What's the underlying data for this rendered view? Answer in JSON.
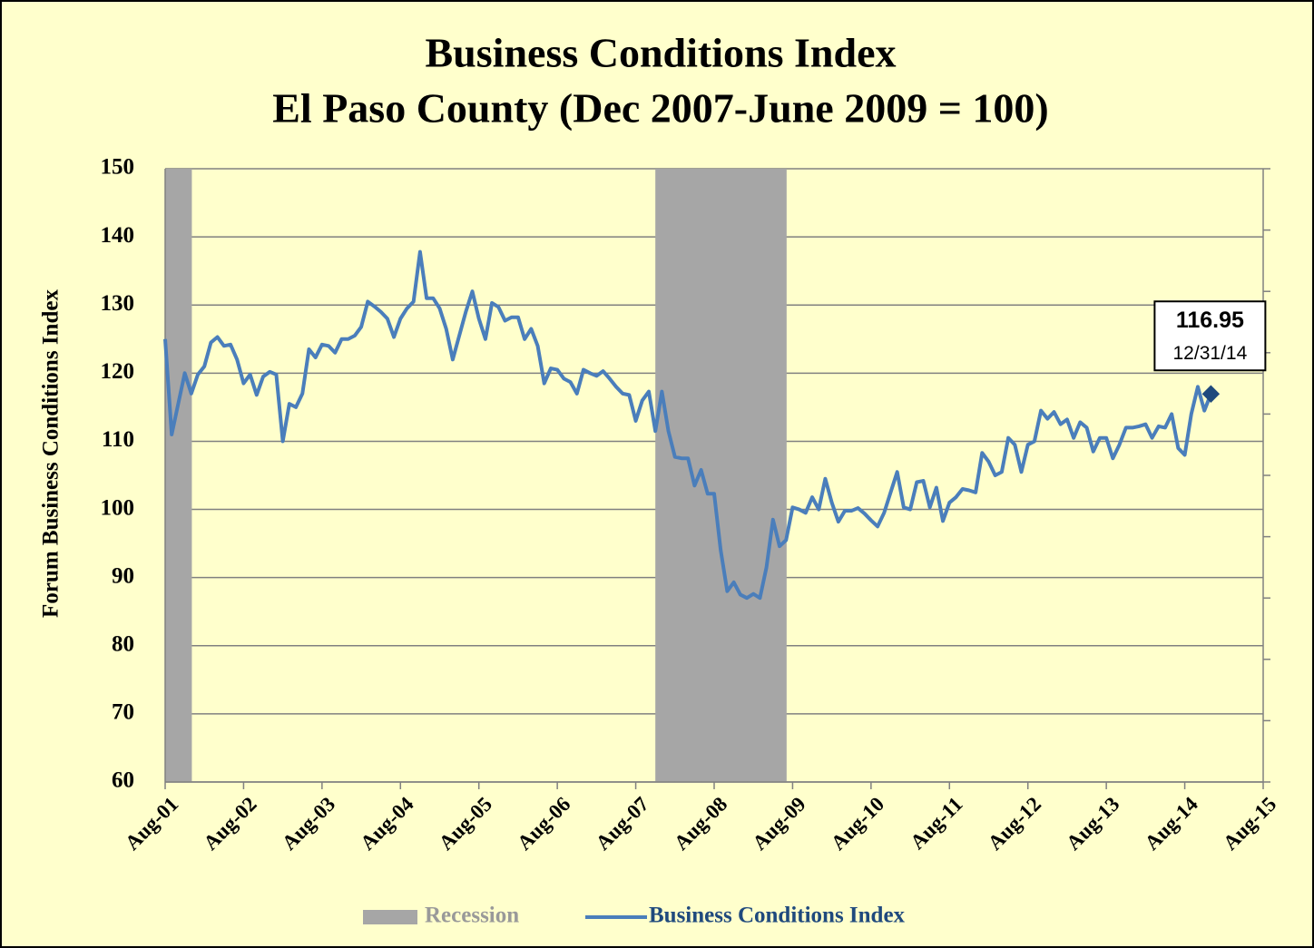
{
  "chart_data": {
    "type": "line",
    "title": "Business Conditions Index",
    "subtitle": "El Paso County (Dec 2007-June 2009 = 100)",
    "y_label": "Forum Business Conditions Index",
    "ylim": [
      60,
      150
    ],
    "yticks": [
      60,
      70,
      80,
      90,
      100,
      110,
      120,
      130,
      140,
      150
    ],
    "y2lim": [
      0,
      1
    ],
    "y2ticks": [
      0,
      0.1,
      0.2,
      0.3,
      0.4,
      0.5,
      0.6,
      0.7,
      0.8,
      0.9,
      1
    ],
    "grid": true,
    "legend": "bottom",
    "annotation_date": "12/31/14",
    "categories": [
      "Aug-01",
      null,
      null,
      null,
      null,
      null,
      null,
      null,
      null,
      null,
      null,
      null,
      "Aug-02",
      null,
      null,
      null,
      null,
      null,
      null,
      null,
      null,
      null,
      null,
      null,
      "Aug-03",
      null,
      null,
      null,
      null,
      null,
      null,
      null,
      null,
      null,
      null,
      null,
      "Aug-04",
      null,
      null,
      null,
      null,
      null,
      null,
      null,
      null,
      null,
      null,
      null,
      "Aug-05",
      null,
      null,
      null,
      null,
      null,
      null,
      null,
      null,
      null,
      null,
      null,
      "Aug-06",
      null,
      null,
      null,
      null,
      null,
      null,
      null,
      null,
      null,
      null,
      null,
      "Aug-07",
      null,
      null,
      null,
      null,
      null,
      null,
      null,
      null,
      null,
      null,
      null,
      "Aug-08",
      null,
      null,
      null,
      null,
      null,
      null,
      null,
      null,
      null,
      null,
      null,
      "Aug-09",
      null,
      null,
      null,
      null,
      null,
      null,
      null,
      null,
      null,
      null,
      null,
      "Aug-10",
      null,
      null,
      null,
      null,
      null,
      null,
      null,
      null,
      null,
      null,
      null,
      "Aug-11",
      null,
      null,
      null,
      null,
      null,
      null,
      null,
      null,
      null,
      null,
      null,
      "Aug-12",
      null,
      null,
      null,
      null,
      null,
      null,
      null,
      null,
      null,
      null,
      null,
      "Aug-13",
      null,
      null,
      null,
      null,
      null,
      null,
      null,
      null,
      null,
      null,
      null,
      "Aug-14",
      null,
      null,
      null,
      null,
      null,
      null,
      null,
      null,
      null,
      null,
      null,
      "Aug-15"
    ],
    "series": [
      {
        "name": "Recession",
        "type": "bar",
        "axis": "y2",
        "color": "#a6a6a6",
        "values": [
          1,
          1,
          1,
          1,
          null,
          null,
          null,
          null,
          null,
          null,
          null,
          null,
          null,
          null,
          null,
          null,
          null,
          null,
          null,
          null,
          null,
          null,
          null,
          null,
          null,
          null,
          null,
          null,
          null,
          null,
          null,
          null,
          null,
          null,
          null,
          null,
          null,
          null,
          null,
          null,
          null,
          null,
          null,
          null,
          null,
          null,
          null,
          null,
          null,
          null,
          null,
          null,
          null,
          null,
          null,
          null,
          null,
          null,
          null,
          null,
          null,
          null,
          null,
          null,
          null,
          null,
          null,
          null,
          null,
          null,
          null,
          null,
          null,
          null,
          null,
          1,
          1,
          1,
          1,
          1,
          1,
          1,
          1,
          1,
          1,
          1,
          1,
          1,
          1,
          1,
          1,
          1,
          1,
          1,
          1,
          null,
          null,
          null,
          null,
          null,
          null,
          null,
          null,
          null,
          null,
          null,
          null,
          null,
          null,
          null,
          null,
          null,
          null,
          null,
          null,
          null,
          null,
          null,
          null,
          null,
          null,
          null,
          null,
          null,
          null,
          null,
          null,
          null,
          null,
          null,
          null,
          null,
          null,
          null,
          null,
          null,
          null,
          null,
          null,
          null,
          null,
          null,
          null,
          null,
          null,
          null,
          null,
          null,
          null,
          null,
          null,
          null,
          null,
          null,
          null,
          null,
          null,
          null,
          null,
          null,
          null,
          null,
          null,
          null,
          null,
          null,
          null,
          null,
          null
        ]
      },
      {
        "name": "Business Conditions Index",
        "type": "line",
        "color": "#4a7ebb",
        "values": [
          125,
          111,
          115.5,
          120,
          117,
          119.8,
          121,
          124.5,
          125.3,
          124,
          124.2,
          122,
          118.5,
          119.8,
          116.8,
          119.5,
          120.2,
          119.8,
          110,
          115.5,
          115,
          117,
          123.5,
          122.3,
          124.2,
          124,
          123,
          125,
          125,
          125.5,
          126.8,
          130.5,
          129.8,
          129,
          128,
          125.3,
          128,
          129.5,
          130.5,
          137.8,
          131,
          131,
          129.5,
          126.5,
          122,
          125.5,
          129,
          132,
          128,
          125,
          130.3,
          129.7,
          127.7,
          128.2,
          128.2,
          125,
          126.5,
          124,
          118.5,
          120.7,
          120.5,
          119.2,
          118.7,
          117,
          120.5,
          120,
          119.6,
          120.3,
          119.2,
          118,
          117,
          116.8,
          113,
          116,
          117.3,
          111.5,
          117.3,
          111.5,
          107.7,
          107.5,
          107.5,
          103.5,
          105.8,
          102.3,
          102.3,
          94,
          88,
          89.3,
          87.5,
          87,
          87.6,
          87,
          91.5,
          98.5,
          94.6,
          95.5,
          100.3,
          100,
          99.5,
          101.8,
          100,
          104.5,
          101,
          98.2,
          99.8,
          99.8,
          100.2,
          99.4,
          98.4,
          97.5,
          99.5,
          102.5,
          105.5,
          100.3,
          100,
          104,
          104.2,
          100.3,
          103.2,
          98.3,
          101,
          101.8,
          103,
          102.8,
          102.5,
          108.3,
          107,
          105,
          105.5,
          110.5,
          109.5,
          105.5,
          109.5,
          110,
          114.5,
          113.3,
          114.3,
          112.5,
          113.2,
          110.5,
          112.8,
          112,
          108.5,
          110.5,
          110.5,
          107.5,
          109.5,
          112,
          112,
          112.2,
          112.5,
          110.5,
          112.2,
          112,
          114,
          109,
          108,
          114,
          118,
          114.5,
          116.95,
          null,
          null,
          null,
          null,
          null,
          null,
          null,
          null
        ]
      }
    ]
  }
}
